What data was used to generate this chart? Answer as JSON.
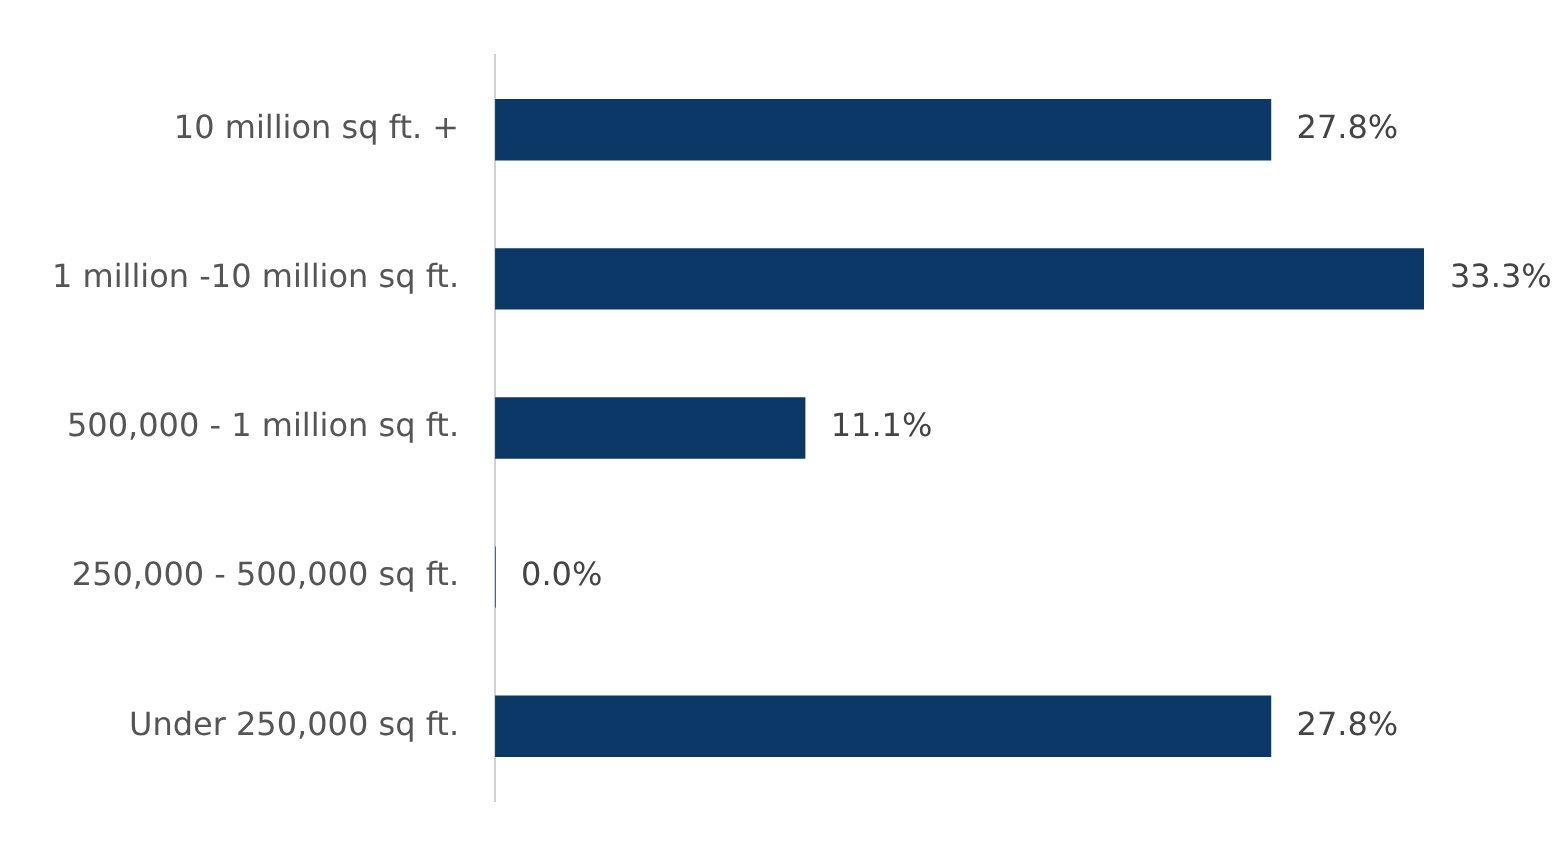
{
  "chart_data": {
    "type": "bar",
    "orientation": "horizontal",
    "categories": [
      "10 million sq ft. +",
      "1 million -10 million sq ft.",
      "500,000 - 1 million sq ft.",
      "250,000 - 500,000 sq ft.",
      "Under 250,000 sq ft."
    ],
    "values": [
      27.8,
      33.3,
      11.1,
      0.0,
      27.8
    ],
    "value_labels": [
      "27.8%",
      "33.3%",
      "11.1%",
      "0.0%",
      "27.8%"
    ],
    "color": "#0b3866"
  }
}
